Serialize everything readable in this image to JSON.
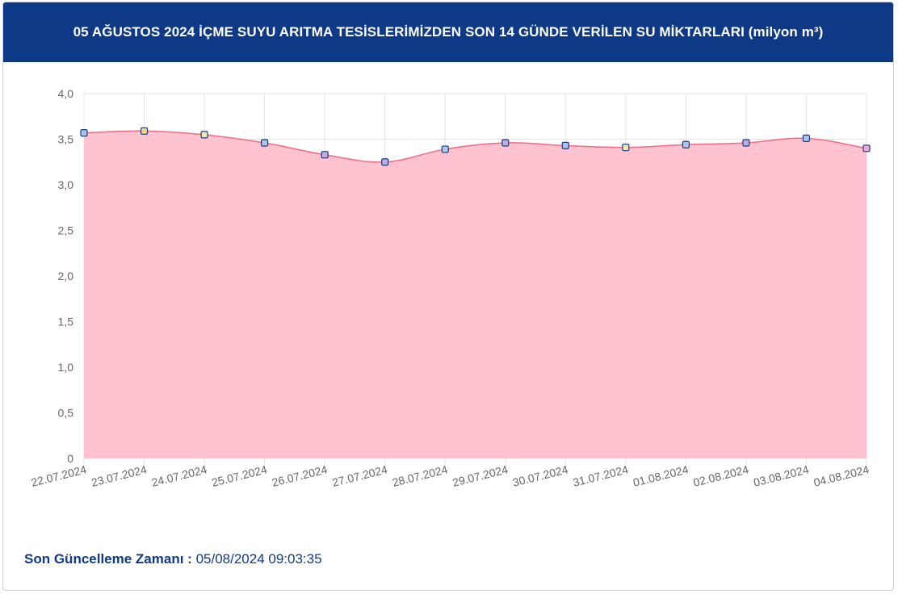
{
  "header": {
    "title": "05 AĞUSTOS 2024 İÇME SUYU ARITMA TESİSLERİMİZDEN SON 14 GÜNDE VERİLEN SU MİKTARLARI (milyon m³)"
  },
  "footer": {
    "label": "Son Güncelleme Zamanı",
    "separator": " : ",
    "value": "05/08/2024 09:03:35"
  },
  "colors": {
    "header_bg": "#0e3987",
    "area_fill": "#ffc0cd",
    "line": "#f06b86",
    "grid": "#e3e3e3",
    "axis_text": "#666666",
    "point_border": "#1f3a7a"
  },
  "chart_data": {
    "type": "area",
    "categories": [
      "22.07.2024",
      "23.07.2024",
      "24.07.2024",
      "25.07.2024",
      "26.07.2024",
      "27.07.2024",
      "28.07.2024",
      "29.07.2024",
      "30.07.2024",
      "31.07.2024",
      "01.08.2024",
      "02.08.2024",
      "03.08.2024",
      "04.08.2024"
    ],
    "series": [
      {
        "values": [
          3.57,
          3.59,
          3.55,
          3.46,
          3.33,
          3.25,
          3.39,
          3.46,
          3.43,
          3.41,
          3.44,
          3.46,
          3.51,
          3.4
        ],
        "point_colors": [
          "#a8c6f0",
          "#f5d48a",
          "#f2ebb0",
          "#a8c6f0",
          "#b9aee8",
          "#b9aee8",
          "#a8c6f0",
          "#b9aee8",
          "#a8c6f0",
          "#f2ebb0",
          "#a8c6f0",
          "#b9aee8",
          "#a8c6f0",
          "#e8a8d8"
        ]
      }
    ],
    "ylim": [
      0,
      4
    ],
    "yticks": [
      "0",
      "0,5",
      "1,0",
      "1,5",
      "2,0",
      "2,5",
      "3,0",
      "3,5",
      "4,0"
    ],
    "grid": true,
    "legend": "none"
  }
}
